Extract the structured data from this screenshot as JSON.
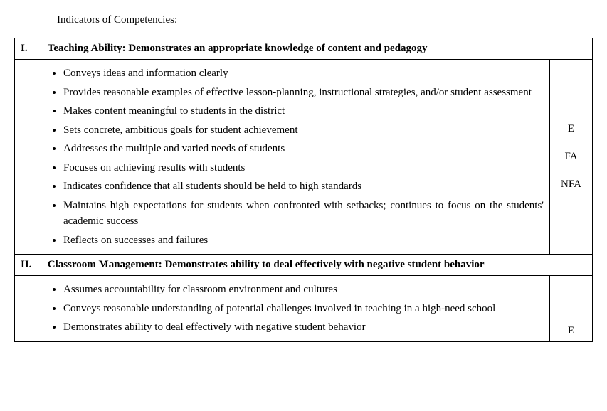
{
  "page": {
    "heading": "Indicators of Competencies:"
  },
  "sections": [
    {
      "roman": "I.",
      "title": "Teaching Ability: Demonstrates an appropriate knowledge of content and pedagogy",
      "bullets": [
        "Conveys ideas and information clearly",
        "Provides reasonable examples of effective lesson-planning, instructional strategies, and/or student assessment",
        "Makes content meaningful to students in the district",
        "Sets concrete, ambitious goals for student achievement",
        "Addresses the multiple and varied needs of students",
        "Focuses on achieving results with students",
        "Indicates confidence that all students should be held to high standards",
        "Maintains high expectations for students when confronted with setbacks; continues to focus on the students' academic success",
        "Reflects on successes and failures"
      ],
      "ratings": [
        "E",
        "FA",
        "NFA"
      ]
    },
    {
      "roman": "II.",
      "title": "Classroom Management: Demonstrates ability to deal effectively with negative student behavior",
      "bullets": [
        "Assumes accountability for classroom environment and cultures",
        "Conveys reasonable understanding of potential challenges involved in teaching in a high-need school",
        "Demonstrates ability to deal effectively with negative student behavior"
      ],
      "ratings": [
        "E"
      ]
    }
  ]
}
